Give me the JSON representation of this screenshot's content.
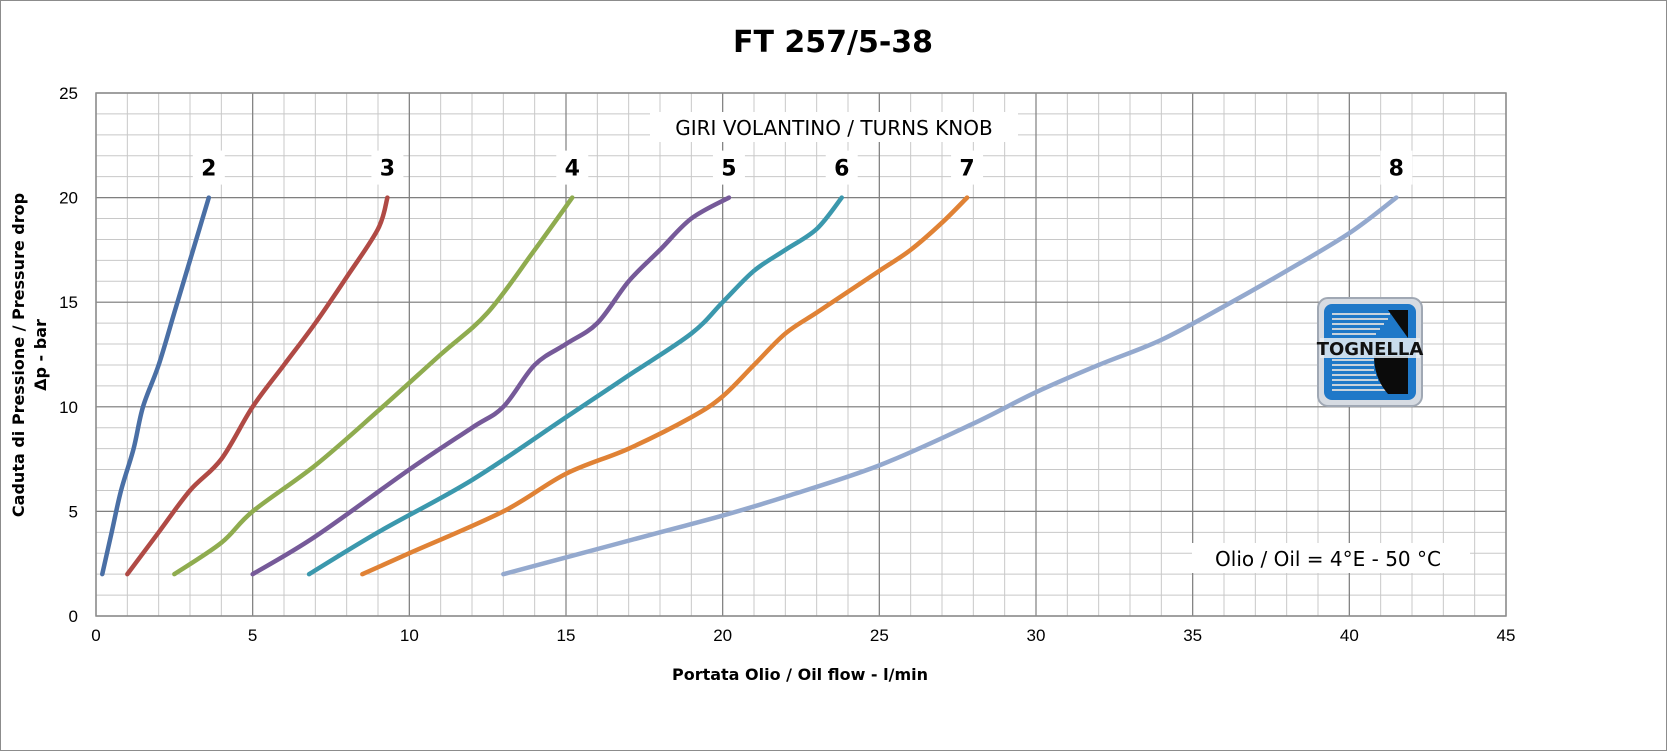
{
  "chart_data": {
    "type": "line",
    "title": "FT 257/5-38",
    "xlabel": "Portata Olio / Oil flow  - l/min",
    "ylabel_line1": "Caduta di Pressione / Pressure drop",
    "ylabel_line2": "Δp - bar",
    "xlim": [
      0,
      45
    ],
    "ylim": [
      0,
      25
    ],
    "x_ticks": [
      "0",
      "5",
      "10",
      "15",
      "20",
      "25",
      "30",
      "35",
      "40",
      "45"
    ],
    "y_ticks": [
      "0",
      "5",
      "10",
      "15",
      "20",
      "25"
    ],
    "grid": true,
    "legend_title": "GIRI VOLANTINO / TURNS KNOB",
    "annotation": "Olio / Oil = 4°E - 50 °C",
    "logo_text": "TOGNELLA",
    "series": [
      {
        "name": "2",
        "color": "#4a6fa5",
        "points": [
          [
            0.2,
            2
          ],
          [
            0.5,
            4
          ],
          [
            0.8,
            6
          ],
          [
            1.2,
            8
          ],
          [
            1.5,
            10
          ],
          [
            2.0,
            12
          ],
          [
            2.5,
            14.5
          ],
          [
            2.9,
            16.5
          ],
          [
            3.3,
            18.5
          ],
          [
            3.6,
            20
          ]
        ]
      },
      {
        "name": "3",
        "color": "#b04a45",
        "points": [
          [
            1.0,
            2
          ],
          [
            2.0,
            4
          ],
          [
            3.0,
            6
          ],
          [
            4.0,
            7.5
          ],
          [
            5.0,
            10
          ],
          [
            6.0,
            12
          ],
          [
            7.0,
            14
          ],
          [
            8.0,
            16.2
          ],
          [
            9.0,
            18.5
          ],
          [
            9.3,
            20
          ]
        ]
      },
      {
        "name": "4",
        "color": "#8fac4f",
        "points": [
          [
            2.5,
            2
          ],
          [
            4.0,
            3.5
          ],
          [
            5.0,
            5
          ],
          [
            7.0,
            7.2
          ],
          [
            9.0,
            9.8
          ],
          [
            11.0,
            12.5
          ],
          [
            12.5,
            14.5
          ],
          [
            14.0,
            17.5
          ],
          [
            15.2,
            20
          ]
        ]
      },
      {
        "name": "5",
        "color": "#765a99",
        "points": [
          [
            5.0,
            2
          ],
          [
            7.0,
            3.8
          ],
          [
            10.0,
            7.0
          ],
          [
            12.0,
            9.0
          ],
          [
            13.0,
            10.0
          ],
          [
            14.0,
            12.0
          ],
          [
            15.0,
            13.0
          ],
          [
            16.0,
            14.0
          ],
          [
            17.0,
            16.0
          ],
          [
            18.0,
            17.5
          ],
          [
            19.0,
            19.0
          ],
          [
            20.2,
            20
          ]
        ]
      },
      {
        "name": "6",
        "color": "#3b98ad",
        "points": [
          [
            6.8,
            2
          ],
          [
            9.0,
            4.0
          ],
          [
            12.0,
            6.5
          ],
          [
            15.0,
            9.5
          ],
          [
            17.0,
            11.5
          ],
          [
            19.0,
            13.5
          ],
          [
            20.0,
            15.0
          ],
          [
            21.0,
            16.5
          ],
          [
            22.0,
            17.5
          ],
          [
            23.0,
            18.5
          ],
          [
            23.8,
            20
          ]
        ]
      },
      {
        "name": "7",
        "color": "#e08235",
        "points": [
          [
            8.5,
            2
          ],
          [
            10.0,
            3.0
          ],
          [
            13.0,
            5.0
          ],
          [
            15.0,
            6.8
          ],
          [
            17.0,
            8.0
          ],
          [
            19.0,
            9.5
          ],
          [
            20.0,
            10.5
          ],
          [
            21.0,
            12.0
          ],
          [
            22.0,
            13.5
          ],
          [
            23.0,
            14.5
          ],
          [
            24.0,
            15.5
          ],
          [
            25.0,
            16.5
          ],
          [
            26.0,
            17.5
          ],
          [
            27.0,
            18.8
          ],
          [
            27.8,
            20
          ]
        ]
      },
      {
        "name": "8",
        "color": "#94a9ce",
        "points": [
          [
            13.0,
            2
          ],
          [
            15.0,
            2.8
          ],
          [
            18.0,
            4.0
          ],
          [
            20.0,
            4.8
          ],
          [
            22.0,
            5.7
          ],
          [
            25.0,
            7.2
          ],
          [
            28.0,
            9.2
          ],
          [
            30.0,
            10.7
          ],
          [
            32.0,
            12.0
          ],
          [
            34.0,
            13.2
          ],
          [
            36.0,
            14.8
          ],
          [
            38.0,
            16.5
          ],
          [
            40.0,
            18.3
          ],
          [
            41.5,
            20
          ]
        ]
      }
    ]
  }
}
